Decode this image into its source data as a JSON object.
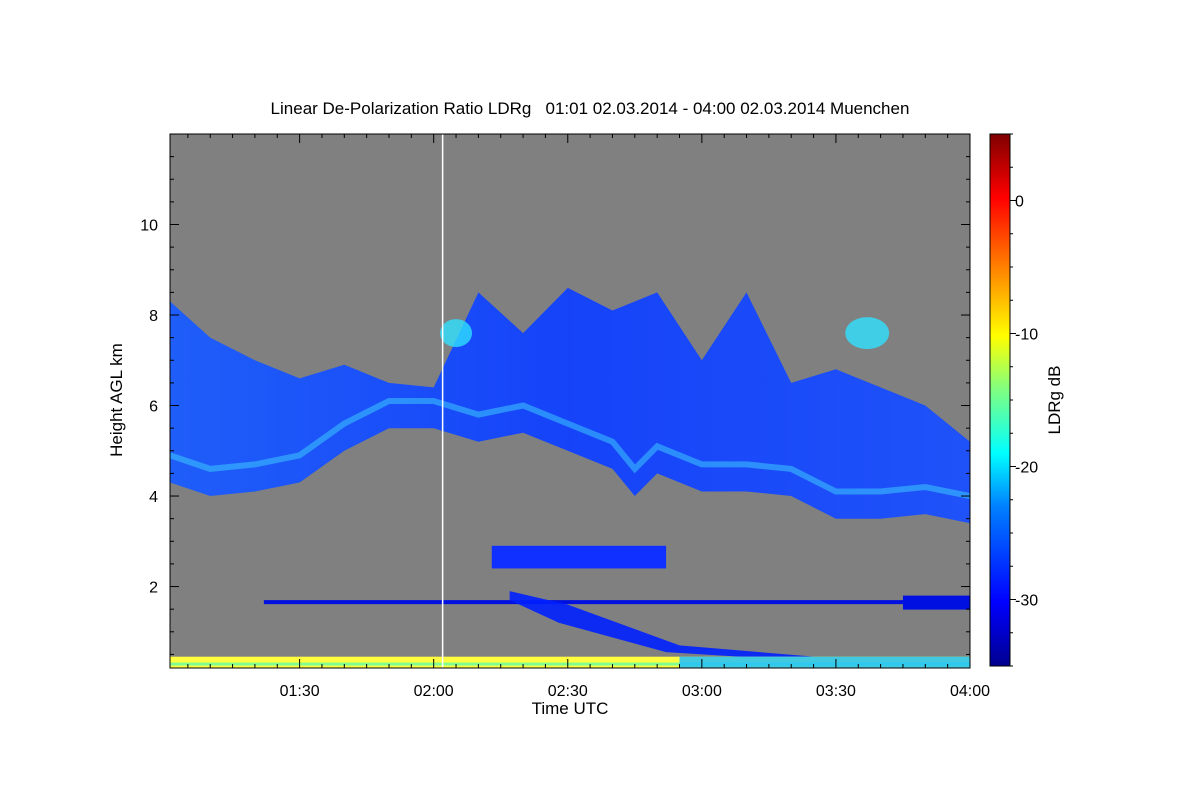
{
  "chart_data": {
    "type": "heatmap",
    "title": "Linear De-Polarization Ratio LDRg   01:01 02.03.2014 - 04:00 02.03.2014 Muenchen",
    "xlabel": "Time UTC",
    "ylabel": "Height AGL km",
    "x_ticks": [
      "01:30",
      "02:00",
      "02:30",
      "03:00",
      "03:30",
      "04:00"
    ],
    "x_tick_minutes": [
      90,
      120,
      150,
      180,
      210,
      240
    ],
    "xlim_minutes": [
      61,
      240
    ],
    "y_ticks": [
      2,
      4,
      6,
      8,
      10
    ],
    "ylim_km": [
      0.2,
      12
    ],
    "colorbar": {
      "label": "LDRg dB",
      "ticks": [
        0,
        -10,
        -20,
        -30
      ],
      "range": [
        -35,
        5
      ],
      "colors": [
        "#00008f",
        "#0000ff",
        "#0080ff",
        "#00ffff",
        "#80ff80",
        "#ffff00",
        "#ff8000",
        "#ff0000",
        "#800000"
      ]
    },
    "background_color": "#808080",
    "data_gap_line_minutes": 122,
    "features": {
      "upper_cloud_base_km": [
        {
          "t": 61,
          "h": 4.3
        },
        {
          "t": 70,
          "h": 4.0
        },
        {
          "t": 80,
          "h": 4.1
        },
        {
          "t": 90,
          "h": 4.3
        },
        {
          "t": 100,
          "h": 5.0
        },
        {
          "t": 110,
          "h": 5.5
        },
        {
          "t": 120,
          "h": 5.5
        },
        {
          "t": 130,
          "h": 5.2
        },
        {
          "t": 140,
          "h": 5.4
        },
        {
          "t": 150,
          "h": 5.0
        },
        {
          "t": 160,
          "h": 4.6
        },
        {
          "t": 165,
          "h": 4.0
        },
        {
          "t": 170,
          "h": 4.5
        },
        {
          "t": 180,
          "h": 4.1
        },
        {
          "t": 190,
          "h": 4.1
        },
        {
          "t": 200,
          "h": 4.0
        },
        {
          "t": 210,
          "h": 3.5
        },
        {
          "t": 220,
          "h": 3.5
        },
        {
          "t": 230,
          "h": 3.6
        },
        {
          "t": 240,
          "h": 3.4
        }
      ],
      "upper_cloud_top_km": [
        {
          "t": 61,
          "h": 8.3
        },
        {
          "t": 70,
          "h": 7.5
        },
        {
          "t": 80,
          "h": 7.0
        },
        {
          "t": 90,
          "h": 6.6
        },
        {
          "t": 100,
          "h": 6.9
        },
        {
          "t": 110,
          "h": 6.5
        },
        {
          "t": 120,
          "h": 6.4
        },
        {
          "t": 130,
          "h": 8.5
        },
        {
          "t": 140,
          "h": 7.6
        },
        {
          "t": 150,
          "h": 8.6
        },
        {
          "t": 160,
          "h": 8.1
        },
        {
          "t": 170,
          "h": 8.5
        },
        {
          "t": 180,
          "h": 7.0
        },
        {
          "t": 190,
          "h": 8.5
        },
        {
          "t": 200,
          "h": 6.5
        },
        {
          "t": 210,
          "h": 6.8
        },
        {
          "t": 220,
          "h": 6.4
        },
        {
          "t": 230,
          "h": 6.0
        },
        {
          "t": 240,
          "h": 5.2
        }
      ],
      "mid_layer": {
        "t_start": 133,
        "t_end": 172,
        "h_low": 2.4,
        "h_high": 2.9
      },
      "low_layer": {
        "t_start": 82,
        "t_end": 240,
        "h": 1.65
      },
      "surface_layer_h_km": [
        0.2,
        0.45
      ]
    }
  }
}
